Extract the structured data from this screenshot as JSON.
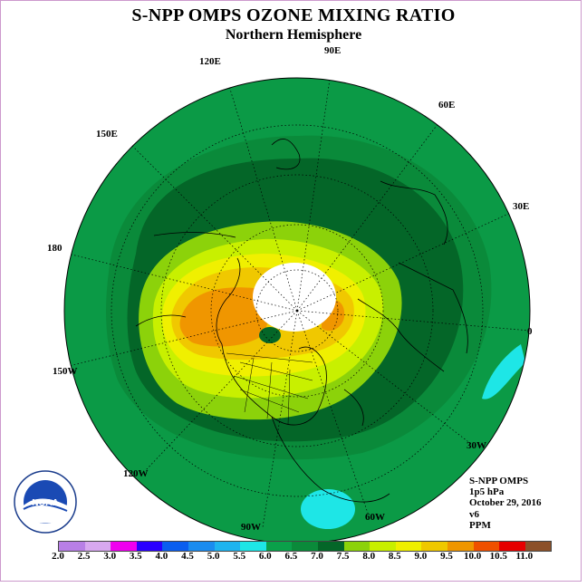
{
  "title": "S-NPP OMPS OZONE MIXING RATIO",
  "subtitle": "Northern Hemisphere",
  "longitude_labels": {
    "e90": "90E",
    "e120": "120E",
    "e60": "60E",
    "e150": "150E",
    "e30": "30E",
    "e180": "180",
    "e0": "0",
    "w150": "150W",
    "w30": "30W",
    "w120": "120W",
    "w60": "60W",
    "w90": "90W"
  },
  "info": {
    "instrument": "S-NPP OMPS",
    "level": "1p5 hPa",
    "date": "October 29, 2016",
    "version": "v6",
    "units": "PPM"
  },
  "logo": {
    "name": "noaa-logo",
    "text": "NOAA"
  },
  "colorbar": {
    "ticks": [
      "2.0",
      "2.5",
      "3.0",
      "3.5",
      "4.0",
      "4.5",
      "5.0",
      "5.5",
      "6.0",
      "6.5",
      "7.0",
      "7.5",
      "8.0",
      "8.5",
      "9.0",
      "9.5",
      "10.0",
      "10.5",
      "11.0"
    ],
    "colors": [
      "#b87fe6",
      "#d8a8f0",
      "#f000f0",
      "#2a00ff",
      "#0a5ef0",
      "#1a8cf0",
      "#1eb4f0",
      "#1ee6e6",
      "#0aa04a",
      "#0a8a3a",
      "#046628",
      "#8cd20a",
      "#c8f000",
      "#f0f000",
      "#f0c800",
      "#f09600",
      "#f05000",
      "#e60000",
      "#8c5028"
    ]
  },
  "map_colors": {
    "ocean_background": "#0b9a46",
    "band_6_5": "#0a8a3a",
    "band_7_0": "#046628",
    "band_7_5": "#8cd20a",
    "band_8_0": "#c8f000",
    "band_8_5": "#f0f000",
    "band_9_0": "#f0c800",
    "band_9_5": "#f09600",
    "cyan_low": "#1ee6e6",
    "polar_night": "#ffffff"
  }
}
